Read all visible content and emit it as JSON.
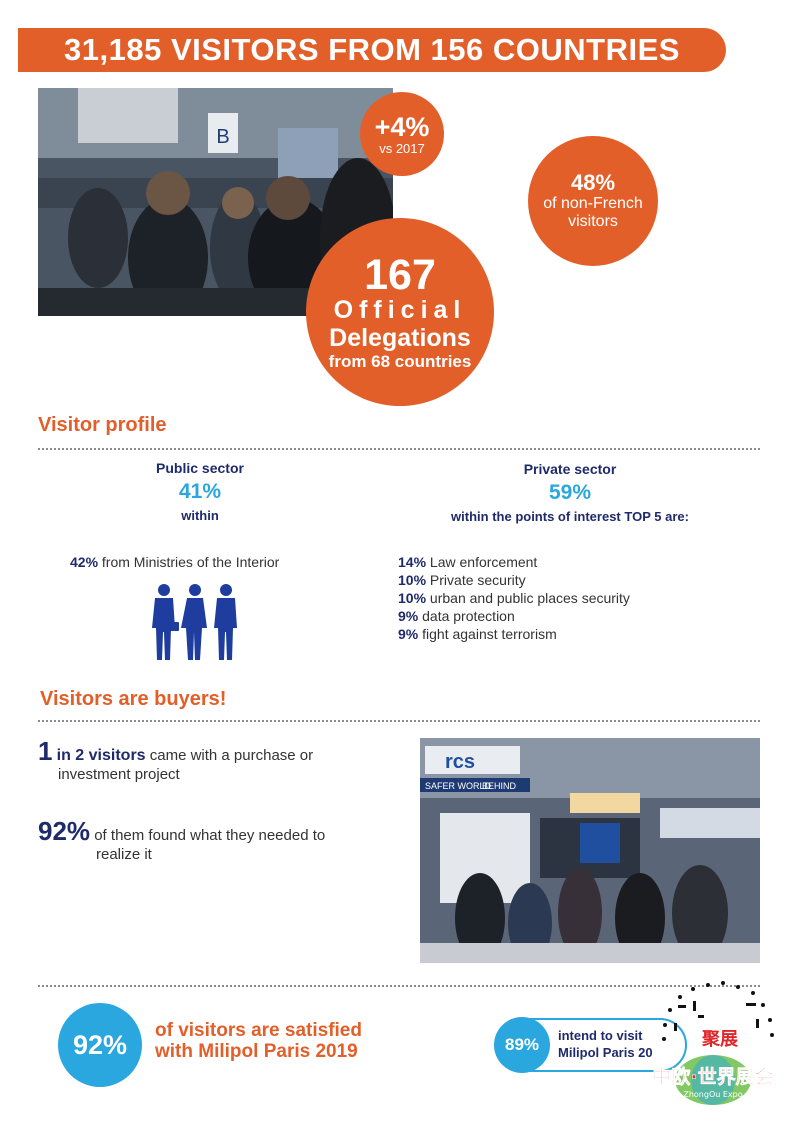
{
  "banner": {
    "title": "31,185 VISITORS FROM 156 COUNTRIES"
  },
  "stats": {
    "growth": {
      "value": "+4%",
      "label": "vs 2017"
    },
    "delegations": {
      "value": "167",
      "line1": "Official",
      "line2": "Delegations",
      "line3": "from 68 countries"
    },
    "non_french": {
      "value": "48%",
      "line1": "of non-French",
      "line2": "visitors"
    }
  },
  "visitor_profile": {
    "title": "Visitor profile",
    "public": {
      "heading": "Public sector",
      "percent": "41%",
      "sub": "within",
      "ministries_pct": "42%",
      "ministries_text": "from Ministries of the Interior"
    },
    "private": {
      "heading": "Private sector",
      "percent": "59%",
      "sub": "within the points of interest TOP 5 are:",
      "items": [
        {
          "pct": "14%",
          "text": "Law enforcement"
        },
        {
          "pct": "10%",
          "text": "Private security"
        },
        {
          "pct": "10%",
          "text": "urban and public places security"
        },
        {
          "pct": "9%",
          "text": "data protection"
        },
        {
          "pct": "9%",
          "text": "fight against terrorism"
        }
      ]
    }
  },
  "buyers": {
    "title": "Visitors are buyers!",
    "item1": {
      "big": "1",
      "mid": "in 2 visitors",
      "text1": "came with a purchase or",
      "text2": "investment project"
    },
    "item2": {
      "big": "92%",
      "text1": "of them found what they needed to",
      "text2": "realize it"
    }
  },
  "photo2": {
    "sign1": "rcs",
    "sign2": "SAFER WORLD",
    "sign3": "BEHIND"
  },
  "photo1": {
    "sign": "B"
  },
  "satisfaction": {
    "value": "92%",
    "line1": "of visitors are satisfied",
    "line2": "with Milipol Paris 2019"
  },
  "intend": {
    "value": "89%",
    "line1": "intend to visit",
    "line2": "Milipol Paris 20"
  },
  "watermark": {
    "cn1": "聚展",
    "cn2": "中欧·世界展会",
    "en": "ZhongOu Expo"
  },
  "colors": {
    "orange": "#e35f2a",
    "navy": "#1f2a6b",
    "blue": "#2aa7df"
  }
}
